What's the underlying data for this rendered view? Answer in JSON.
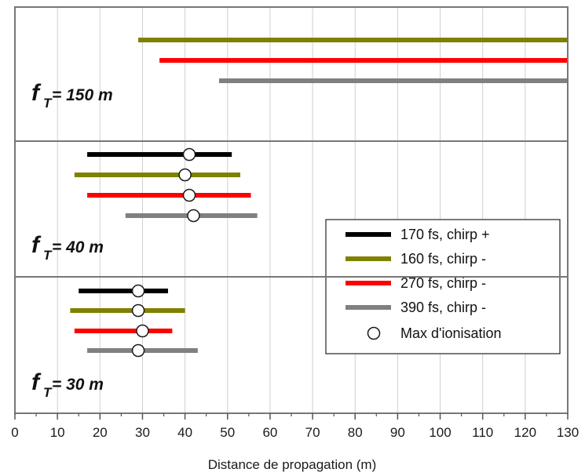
{
  "chart_data": {
    "type": "range",
    "xlabel": "Distance de propagation (m)",
    "xlim": [
      0,
      130
    ],
    "xticks": [
      0,
      10,
      20,
      30,
      40,
      50,
      60,
      70,
      80,
      90,
      100,
      110,
      120,
      130
    ],
    "grid": "vertical",
    "legend_position": "right",
    "series_styles": [
      {
        "name": "170 fs, chirp +",
        "color": "#000000"
      },
      {
        "name": "160 fs, chirp -",
        "color": "#808000"
      },
      {
        "name": "270 fs, chirp -",
        "color": "#ff0000"
      },
      {
        "name": "390 fs, chirp -",
        "color": "#808080"
      }
    ],
    "marker_label": "Max d'ionisation",
    "panels": [
      {
        "label_main": "f",
        "label_sub": "T",
        "label_rest": "= 150 m",
        "bars": [
          {
            "series": 1,
            "start": 29,
            "end": 130,
            "max": null
          },
          {
            "series": 2,
            "start": 34,
            "end": 130,
            "max": null
          },
          {
            "series": 3,
            "start": 48,
            "end": 130,
            "max": null
          }
        ]
      },
      {
        "label_main": "f",
        "label_sub": "T",
        "label_rest": "= 40 m",
        "bars": [
          {
            "series": 0,
            "start": 17,
            "end": 51,
            "max": 41
          },
          {
            "series": 1,
            "start": 14,
            "end": 53,
            "max": 40
          },
          {
            "series": 2,
            "start": 17,
            "end": 55.5,
            "max": 41
          },
          {
            "series": 3,
            "start": 26,
            "end": 57,
            "max": 42
          }
        ]
      },
      {
        "label_main": "f",
        "label_sub": "T",
        "label_rest": "= 30 m",
        "bars": [
          {
            "series": 0,
            "start": 15,
            "end": 36,
            "max": 29
          },
          {
            "series": 1,
            "start": 13,
            "end": 40,
            "max": 29
          },
          {
            "series": 2,
            "start": 14,
            "end": 37,
            "max": 30
          },
          {
            "series": 3,
            "start": 17,
            "end": 43,
            "max": 29
          }
        ]
      }
    ]
  }
}
